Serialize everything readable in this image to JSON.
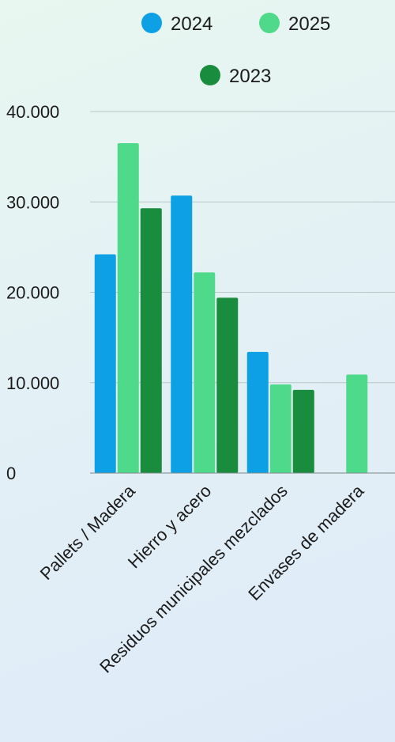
{
  "chart_data": {
    "type": "bar",
    "categories": [
      "Pallets / Madera",
      "Hierro y acero",
      "Residuos municipales mezclados",
      "Envases de madera"
    ],
    "series": [
      {
        "name": "2024",
        "color": "#0ea0e4",
        "values": [
          24200,
          30700,
          13400,
          null
        ]
      },
      {
        "name": "2025",
        "color": "#4fd98a",
        "values": [
          36500,
          22200,
          9800,
          10900
        ]
      },
      {
        "name": "2023",
        "color": "#1a8c3e",
        "values": [
          29300,
          19400,
          9200,
          null
        ]
      }
    ],
    "ylim": [
      0,
      40000
    ],
    "yticks": [
      0,
      10000,
      20000,
      30000,
      40000
    ],
    "ytick_labels": [
      "0",
      "10.000",
      "20.000",
      "30.000",
      "40.000"
    ],
    "grid": true,
    "legend_position": "top",
    "xlabel": "",
    "ylabel": ""
  }
}
